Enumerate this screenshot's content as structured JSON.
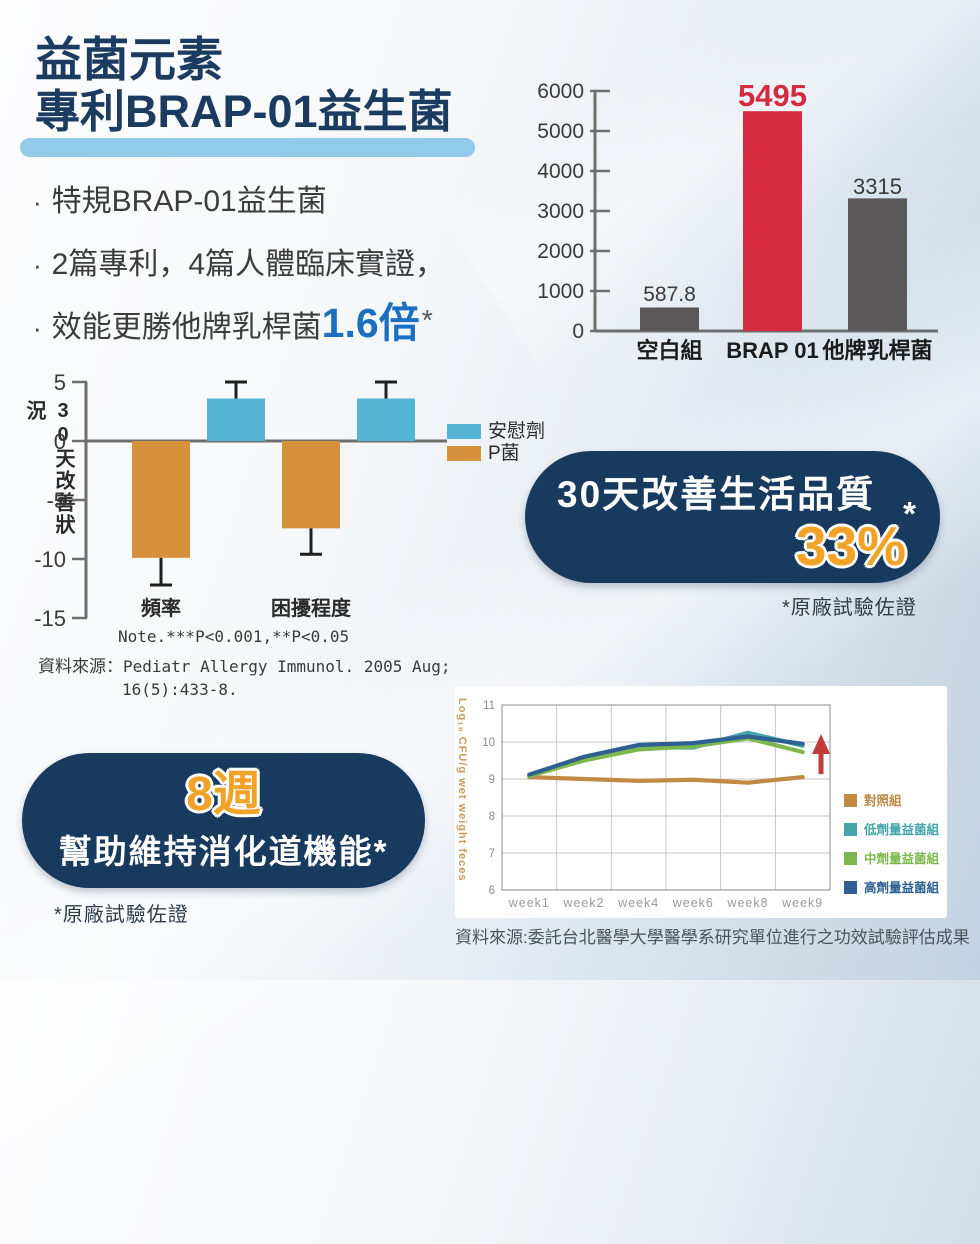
{
  "header": {
    "bullet_char": "·",
    "title_line1": "益菌元素",
    "title_line2": "專利BRAP-01益生菌",
    "bullets": [
      {
        "text": "特規BRAP-01益生菌"
      },
      {
        "text": "2篇專利，4篇人體臨床實證，"
      },
      {
        "prefix": "效能更勝他牌乳桿菌",
        "highlight": "1.6倍",
        "suffix": "*"
      }
    ]
  },
  "chart_data": [
    {
      "type": "bar",
      "title": "",
      "categories": [
        "空白組",
        "BRAP 01",
        "他牌乳桿菌"
      ],
      "values": [
        587.8,
        5495,
        3315
      ],
      "value_labels": [
        "587.8",
        "5495",
        "3315"
      ],
      "bar_colors": [
        "#595757",
        "#D42B40",
        "#595757"
      ],
      "label_colors": [
        "#3A3A3A",
        "#D42B40",
        "#3A3A3A"
      ],
      "ylim": [
        0,
        6000
      ],
      "yticks": [
        0,
        1000,
        2000,
        3000,
        4000,
        5000,
        6000
      ],
      "grid": false,
      "legend_position": "none"
    },
    {
      "type": "bar",
      "ylabel": "30天改善狀況",
      "categories": [
        "頻率",
        "困擾程度"
      ],
      "series": [
        {
          "name": "安慰劑",
          "color": "#55B5D2",
          "values": [
            3.6,
            3.6
          ],
          "errors": [
            1.4,
            1.4
          ]
        },
        {
          "name": "P菌",
          "color": "#D6913C",
          "values": [
            -9.9,
            -7.4
          ],
          "errors": [
            2.3,
            2.2
          ]
        }
      ],
      "ylim": [
        -15,
        5
      ],
      "yticks": [
        5,
        0,
        -5,
        -10,
        -15
      ],
      "grid": false,
      "legend_position": "right",
      "note": "Note.***P<0.001,**P<0.05",
      "source_label": "資料來源：",
      "source_line1": "Pediatr Allergy Immunol. 2005 Aug;",
      "source_line2": "16(5):433-8."
    },
    {
      "type": "line",
      "x": [
        "week1",
        "week2",
        "week4",
        "week6",
        "week8",
        "week9"
      ],
      "ylabel": "Log₁₀ CFU/g wet weight feces",
      "ylim": [
        6,
        11
      ],
      "yticks": [
        11,
        10,
        9,
        8,
        7,
        6
      ],
      "grid": true,
      "legend_position": "right",
      "series": [
        {
          "name": "對照組",
          "color": "#C08A44",
          "values": [
            9.05,
            9.0,
            8.95,
            8.98,
            8.9,
            9.05
          ]
        },
        {
          "name": "低劑量益菌組",
          "color": "#45A5AC",
          "values": [
            9.1,
            9.55,
            9.85,
            9.85,
            10.25,
            9.9
          ]
        },
        {
          "name": "中劑量益菌組",
          "color": "#7CB84E",
          "values": [
            9.08,
            9.5,
            9.8,
            9.88,
            10.1,
            9.73
          ]
        },
        {
          "name": "高劑量益菌組",
          "color": "#2E6191",
          "values": [
            9.12,
            9.6,
            9.92,
            9.97,
            10.15,
            9.95
          ]
        }
      ],
      "annotation": {
        "type": "up-arrow",
        "color": "#C23B3B",
        "near": "week9",
        "from": 9.05,
        "to": 10.0
      },
      "source": "資料來源:委託台北醫學大學醫學系研究單位進行之功效試驗評估成果"
    }
  ],
  "badges": {
    "quality": {
      "title": "30天改善生活品質",
      "value": "33%",
      "asterisk": "*",
      "footnote": "*原廠試驗佐證"
    },
    "duration": {
      "value": "8週",
      "title": "幫助維持消化道機能*",
      "footnote": "*原廠試驗佐證"
    }
  },
  "colors": {
    "title_navy": "#1B3C60",
    "underline_blue": "#92CAEC",
    "highlight_blue": "#1B6FC0",
    "badge_navy": "#173A5E",
    "accent_orange": "#F2A227",
    "bar_red": "#D42B40",
    "bar_gray": "#595757"
  }
}
